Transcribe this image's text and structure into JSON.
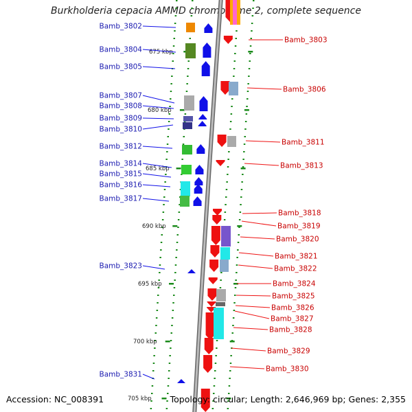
{
  "title": "Burkholderia cepacia AMMD chromosome 2, complete sequence",
  "footer": {
    "accession": "Accession: NC_008391",
    "info": "Topology: circular; Length: 2,646,969 bp; Genes: 2,355"
  },
  "colors": {
    "backbone": "#999999",
    "forward_gene": "#1010e8",
    "reverse_gene": "#ee1111",
    "forward_label": "#1a1ab0",
    "reverse_label": "#c80000",
    "ticks": "#1a8a1a"
  },
  "scale_labels": [
    "675 kbp",
    "680 kbp",
    "685 kbp",
    "690 kbp",
    "695 kbp",
    "700 kbp",
    "705 kbp"
  ],
  "forward_genes": [
    "Bamb_3802",
    "Bamb_3804",
    "Bamb_3805",
    "Bamb_3807",
    "Bamb_3808",
    "Bamb_3809",
    "Bamb_3810",
    "Bamb_3812",
    "Bamb_3814",
    "Bamb_3815",
    "Bamb_3816",
    "Bamb_3817",
    "Bamb_3823",
    "Bamb_3831"
  ],
  "reverse_genes": [
    "Bamb_3803",
    "Bamb_3806",
    "Bamb_3811",
    "Bamb_3813",
    "Bamb_3818",
    "Bamb_3819",
    "Bamb_3820",
    "Bamb_3821",
    "Bamb_3822",
    "Bamb_3824",
    "Bamb_3825",
    "Bamb_3826",
    "Bamb_3827",
    "Bamb_3828",
    "Bamb_3829",
    "Bamb_3830"
  ]
}
